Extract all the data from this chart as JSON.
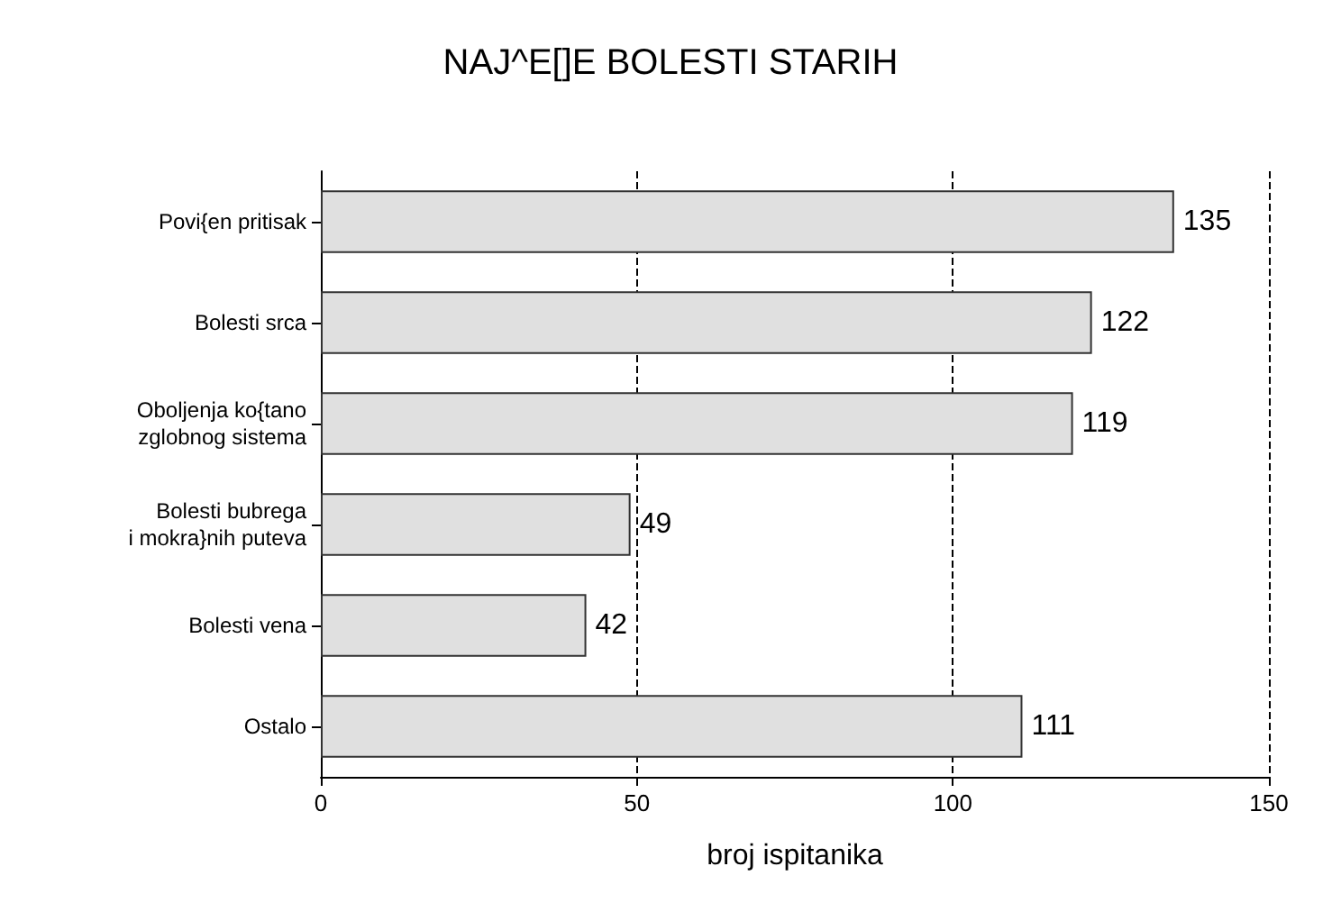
{
  "chart_data": {
    "type": "bar",
    "orientation": "horizontal",
    "title": "NAJ^E[]E BOLESTI STARIH",
    "xlabel": "broj ispitanika",
    "categories": [
      "Povi{en pritisak",
      "Bolesti srca",
      "Oboljenja ko{tano\nzglobnog sistema",
      "Bolesti bubrega\ni mokra}nih puteva",
      "Bolesti vena",
      "Ostalo"
    ],
    "values": [
      135,
      122,
      119,
      49,
      42,
      111
    ],
    "color": "#e0e0e0",
    "xlim": [
      0,
      150
    ],
    "xticks": [
      0,
      50,
      100,
      150
    ],
    "grid": "x",
    "line_style": "dashed",
    "data_labels": true
  }
}
